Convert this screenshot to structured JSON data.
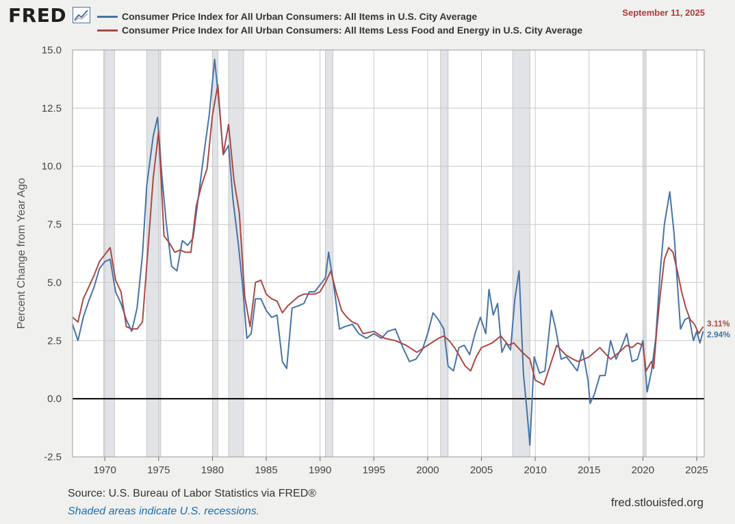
{
  "header": {
    "logo_text": "FRED",
    "logo_icon": "line-chart-icon",
    "date": "September 11, 2025"
  },
  "footer": {
    "source": "Source: U.S. Bureau of Labor Statistics via FRED®",
    "recession_note": "Shaded areas indicate U.S. recessions.",
    "site": "fred.stlouisfed.org"
  },
  "colors": {
    "series_blue": "#4572a7",
    "series_red": "#aa4643",
    "grid": "#c8c8c8",
    "recession": "#e1e3e6",
    "zero_line": "#000000",
    "background": "#ffffff"
  },
  "chart_data": {
    "type": "line",
    "title": "",
    "xlabel": "",
    "ylabel": "Percent Change from Year Ago",
    "xlim": [
      1967,
      2025.7
    ],
    "ylim": [
      -2.5,
      15
    ],
    "x_ticks": [
      "1970",
      "1975",
      "1980",
      "1985",
      "1990",
      "1995",
      "2000",
      "2005",
      "2010",
      "2015",
      "2020",
      "2025"
    ],
    "y_ticks": [
      "15.0",
      "12.5",
      "10.0",
      "7.5",
      "5.0",
      "2.5",
      "0.0",
      "-2.5"
    ],
    "grid": true,
    "legend_position": "top",
    "recessions": [
      [
        1969.9,
        1970.9
      ],
      [
        1973.9,
        1975.2
      ],
      [
        1980.0,
        1980.5
      ],
      [
        1981.5,
        1982.9
      ],
      [
        1990.5,
        1991.2
      ],
      [
        2001.2,
        2001.9
      ],
      [
        2007.9,
        2009.5
      ],
      [
        2020.1,
        2020.3
      ]
    ],
    "series": [
      {
        "name": "Consumer Price Index for All Urban Consumers: All Items in U.S. City Average",
        "color": "#4572a7",
        "end_label": "2.94%",
        "x": [
          1967.0,
          1967.5,
          1968.0,
          1968.5,
          1969.0,
          1969.5,
          1970.0,
          1970.5,
          1971.0,
          1971.5,
          1972.0,
          1972.5,
          1973.0,
          1973.5,
          1973.9,
          1974.5,
          1974.9,
          1975.3,
          1975.7,
          1976.2,
          1976.7,
          1977.2,
          1977.7,
          1978.2,
          1978.7,
          1979.2,
          1979.7,
          1980.2,
          1980.6,
          1981.0,
          1981.5,
          1981.9,
          1982.4,
          1982.8,
          1983.2,
          1983.6,
          1984.0,
          1984.5,
          1985.0,
          1985.5,
          1986.0,
          1986.5,
          1986.9,
          1987.4,
          1988.0,
          1988.5,
          1989.0,
          1989.5,
          1990.0,
          1990.5,
          1990.8,
          1991.3,
          1991.8,
          1992.3,
          1993.0,
          1993.6,
          1994.3,
          1995.0,
          1995.7,
          1996.3,
          1997.0,
          1997.7,
          1998.3,
          1998.9,
          1999.5,
          2000.0,
          2000.5,
          2001.0,
          2001.5,
          2001.9,
          2002.4,
          2002.9,
          2003.4,
          2003.9,
          2004.4,
          2004.9,
          2005.4,
          2005.7,
          2006.1,
          2006.5,
          2006.9,
          2007.3,
          2007.7,
          2008.1,
          2008.5,
          2008.9,
          2009.2,
          2009.5,
          2009.9,
          2010.4,
          2010.9,
          2011.5,
          2011.9,
          2012.4,
          2012.9,
          2013.4,
          2013.9,
          2014.4,
          2014.9,
          2015.1,
          2015.5,
          2016.0,
          2016.5,
          2017.0,
          2017.5,
          2018.0,
          2018.5,
          2019.0,
          2019.5,
          2020.0,
          2020.4,
          2020.8,
          2021.2,
          2021.6,
          2022.0,
          2022.5,
          2022.9,
          2023.2,
          2023.5,
          2023.9,
          2024.3,
          2024.7,
          2025.0,
          2025.3,
          2025.6
        ],
        "values": [
          3.2,
          2.5,
          3.5,
          4.2,
          4.8,
          5.6,
          5.9,
          6.0,
          4.6,
          4.1,
          3.4,
          2.9,
          3.9,
          6.2,
          9.2,
          11.3,
          12.1,
          9.6,
          7.6,
          5.7,
          5.5,
          6.8,
          6.6,
          6.9,
          8.7,
          10.5,
          12.2,
          14.6,
          12.8,
          10.5,
          10.9,
          8.6,
          6.7,
          4.9,
          2.6,
          2.8,
          4.3,
          4.3,
          3.8,
          3.5,
          3.6,
          1.6,
          1.3,
          3.9,
          4.0,
          4.1,
          4.6,
          4.6,
          4.9,
          5.2,
          6.3,
          4.8,
          3.0,
          3.1,
          3.2,
          2.8,
          2.6,
          2.8,
          2.6,
          2.9,
          3.0,
          2.2,
          1.6,
          1.7,
          2.1,
          2.8,
          3.7,
          3.4,
          3.0,
          1.4,
          1.2,
          2.2,
          2.3,
          1.9,
          2.8,
          3.5,
          2.8,
          4.7,
          3.6,
          4.1,
          2.0,
          2.4,
          2.1,
          4.3,
          5.5,
          1.1,
          -0.4,
          -2.0,
          1.8,
          1.1,
          1.2,
          3.8,
          3.0,
          1.7,
          1.8,
          1.5,
          1.2,
          2.1,
          0.8,
          -0.2,
          0.2,
          1.0,
          1.0,
          2.5,
          1.7,
          2.2,
          2.8,
          1.6,
          1.7,
          2.5,
          0.3,
          1.2,
          2.6,
          5.4,
          7.5,
          8.9,
          7.1,
          5.0,
          3.0,
          3.4,
          3.5,
          2.5,
          2.9,
          2.4,
          2.9
        ]
      },
      {
        "name": "Consumer Price Index for All Urban Consumers: All Items Less Food and Energy in U.S. City Average",
        "color": "#aa4643",
        "end_label": "3.11%",
        "x": [
          1967.0,
          1967.5,
          1968.0,
          1968.5,
          1969.0,
          1969.5,
          1970.0,
          1970.5,
          1971.0,
          1971.5,
          1972.0,
          1972.5,
          1973.0,
          1973.5,
          1974.0,
          1974.5,
          1975.0,
          1975.5,
          1976.0,
          1976.5,
          1977.0,
          1977.5,
          1978.0,
          1978.5,
          1979.0,
          1979.5,
          1980.0,
          1980.5,
          1981.0,
          1981.5,
          1982.0,
          1982.5,
          1983.0,
          1983.5,
          1984.0,
          1984.5,
          1985.0,
          1985.5,
          1986.0,
          1986.5,
          1987.0,
          1987.5,
          1988.0,
          1988.5,
          1989.0,
          1989.5,
          1990.0,
          1990.5,
          1991.0,
          1991.5,
          1992.0,
          1992.5,
          1993.0,
          1993.5,
          1994.0,
          1995.0,
          1996.0,
          1997.0,
          1998.0,
          1999.0,
          2000.0,
          2001.0,
          2001.5,
          2002.0,
          2002.5,
          2003.0,
          2003.5,
          2004.0,
          2004.5,
          2005.0,
          2006.0,
          2006.8,
          2007.5,
          2008.0,
          2008.8,
          2009.5,
          2010.0,
          2010.8,
          2011.5,
          2012.0,
          2012.8,
          2013.5,
          2014.0,
          2015.0,
          2016.0,
          2017.0,
          2017.8,
          2018.5,
          2019.0,
          2019.5,
          2020.0,
          2020.3,
          2020.8,
          2021.0,
          2021.3,
          2021.6,
          2022.0,
          2022.4,
          2022.8,
          2023.2,
          2023.6,
          2024.0,
          2024.4,
          2024.8,
          2025.2,
          2025.6
        ],
        "values": [
          3.5,
          3.3,
          4.3,
          4.8,
          5.3,
          5.9,
          6.2,
          6.5,
          5.1,
          4.6,
          3.1,
          3.0,
          3.0,
          3.3,
          6.4,
          9.5,
          11.5,
          7.0,
          6.7,
          6.3,
          6.4,
          6.3,
          6.3,
          8.3,
          9.2,
          9.9,
          12.2,
          13.5,
          10.5,
          11.8,
          9.4,
          8.0,
          4.4,
          3.1,
          5.0,
          5.1,
          4.5,
          4.3,
          4.2,
          3.7,
          4.0,
          4.2,
          4.4,
          4.5,
          4.5,
          4.5,
          4.6,
          5.0,
          5.5,
          4.6,
          3.8,
          3.5,
          3.3,
          3.2,
          2.8,
          2.9,
          2.6,
          2.5,
          2.3,
          2.0,
          2.3,
          2.6,
          2.7,
          2.5,
          2.2,
          1.8,
          1.4,
          1.2,
          1.8,
          2.2,
          2.4,
          2.7,
          2.3,
          2.4,
          2.0,
          1.7,
          0.8,
          0.6,
          1.6,
          2.3,
          1.9,
          1.7,
          1.6,
          1.8,
          2.2,
          1.7,
          2.0,
          2.3,
          2.2,
          2.4,
          2.3,
          1.2,
          1.6,
          1.3,
          3.0,
          4.4,
          6.0,
          6.5,
          6.3,
          5.5,
          4.6,
          3.9,
          3.4,
          3.2,
          2.8,
          3.1
        ]
      }
    ]
  }
}
